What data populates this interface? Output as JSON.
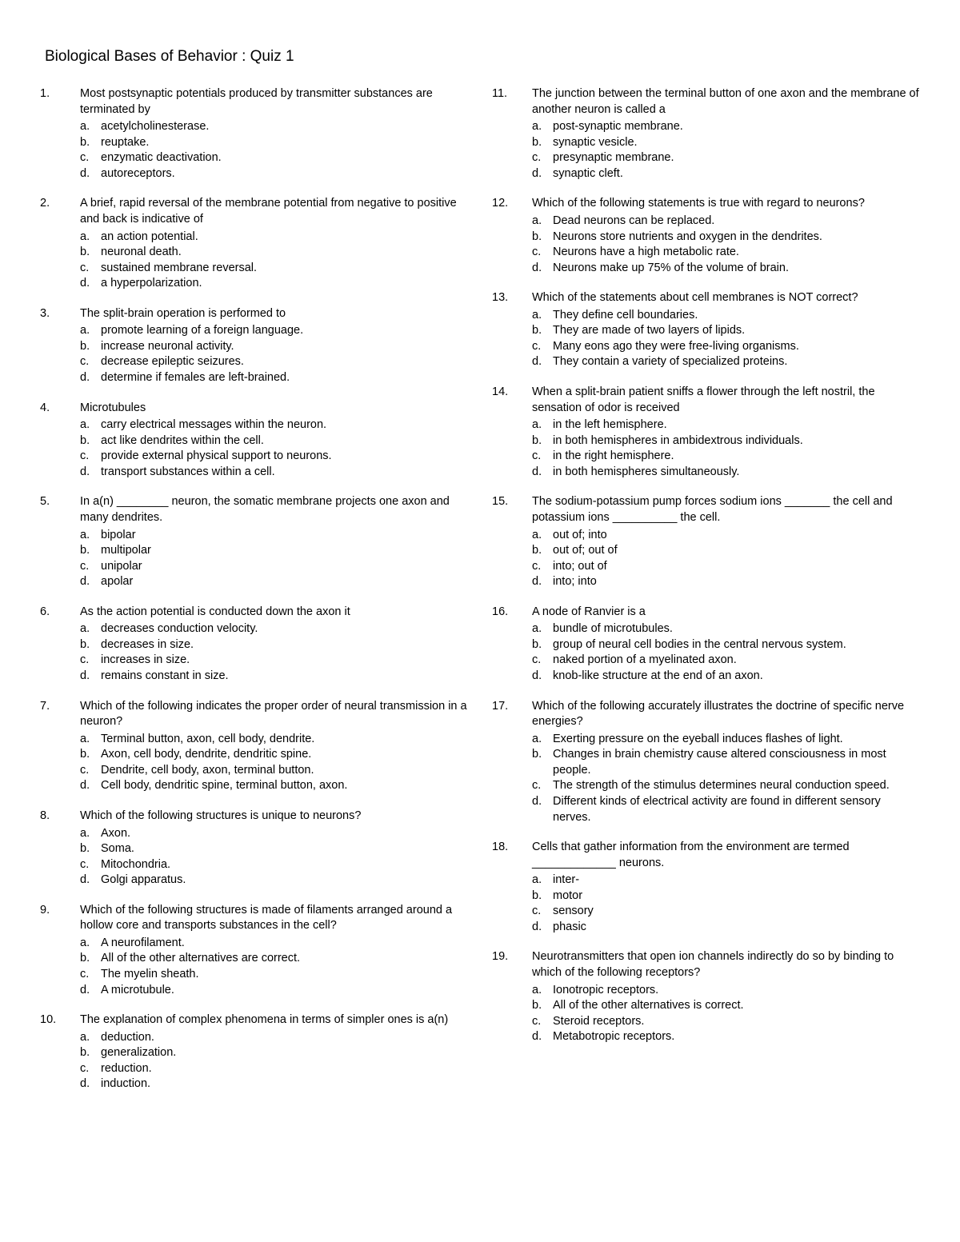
{
  "title": "Biological Bases of Behavior :  Quiz 1",
  "columns": [
    [
      {
        "num": "1.",
        "stem": "Most postsynaptic potentials produced by transmitter substances are terminated by",
        "options": [
          {
            "l": "a.",
            "t": "acetylcholinesterase."
          },
          {
            "l": "b.",
            "t": "reuptake."
          },
          {
            "l": "c.",
            "t": "enzymatic deactivation."
          },
          {
            "l": "d.",
            "t": "autoreceptors."
          }
        ]
      },
      {
        "num": "2.",
        "stem": "A brief, rapid reversal of the membrane potential from negative to positive and back is indicative of",
        "options": [
          {
            "l": "a.",
            "t": "an action potential."
          },
          {
            "l": "b.",
            "t": "neuronal death."
          },
          {
            "l": "c.",
            "t": "sustained membrane reversal."
          },
          {
            "l": "d.",
            "t": "a hyperpolarization."
          }
        ]
      },
      {
        "num": "3.",
        "stem": "The split-brain operation is performed to",
        "options": [
          {
            "l": "a.",
            "t": "promote learning of a foreign language."
          },
          {
            "l": "b.",
            "t": "increase neuronal activity."
          },
          {
            "l": "c.",
            "t": "decrease epileptic seizures."
          },
          {
            "l": "d.",
            "t": "determine if females are left-brained."
          }
        ]
      },
      {
        "num": "4.",
        "stem": "Microtubules",
        "options": [
          {
            "l": "a.",
            "t": "carry electrical messages within the neuron."
          },
          {
            "l": "b.",
            "t": "act like dendrites within the cell."
          },
          {
            "l": "c.",
            "t": "provide external physical support to neurons."
          },
          {
            "l": "d.",
            "t": "transport substances within a cell."
          }
        ]
      },
      {
        "num": "5.",
        "stem": "In a(n) ________ neuron, the somatic membrane projects one axon and many dendrites.",
        "options": [
          {
            "l": "a.",
            "t": "bipolar"
          },
          {
            "l": "b.",
            "t": "multipolar"
          },
          {
            "l": "c.",
            "t": "unipolar"
          },
          {
            "l": "d.",
            "t": "apolar"
          }
        ]
      },
      {
        "num": "6.",
        "stem": "As the action potential is conducted down the axon it",
        "options": [
          {
            "l": "a.",
            "t": "decreases conduction velocity."
          },
          {
            "l": "b.",
            "t": "decreases in size."
          },
          {
            "l": "c.",
            "t": "increases in size."
          },
          {
            "l": "d.",
            "t": "remains constant in size."
          }
        ]
      },
      {
        "num": "7.",
        "stem": "Which of the following indicates the proper order of neural transmission in a neuron?",
        "options": [
          {
            "l": "a.",
            "t": "Terminal button, axon, cell body, dendrite."
          },
          {
            "l": "b.",
            "t": "Axon, cell body, dendrite, dendritic spine."
          },
          {
            "l": "c.",
            "t": "Dendrite, cell body, axon, terminal button."
          },
          {
            "l": "d.",
            "t": "Cell body, dendritic spine, terminal button, axon."
          }
        ]
      },
      {
        "num": "8.",
        "stem": "Which of the following structures is unique to neurons?",
        "options": [
          {
            "l": "a.",
            "t": "Axon."
          },
          {
            "l": "b.",
            "t": "Soma."
          },
          {
            "l": "c.",
            "t": "Mitochondria."
          },
          {
            "l": "d.",
            "t": "Golgi apparatus."
          }
        ]
      },
      {
        "num": "9.",
        "stem": "Which of the following structures is made of filaments arranged around a hollow core and transports substances in the cell?",
        "options": [
          {
            "l": "a.",
            "t": "A neurofilament."
          },
          {
            "l": "b.",
            "t": "All of the other alternatives are correct."
          },
          {
            "l": "c.",
            "t": "The myelin sheath."
          },
          {
            "l": "d.",
            "t": "A microtubule."
          }
        ]
      },
      {
        "num": "10.",
        "stem": "The explanation of complex phenomena in terms of simpler ones is a(n)",
        "options": [
          {
            "l": "a.",
            "t": "deduction."
          },
          {
            "l": "b.",
            "t": "generalization."
          },
          {
            "l": "c.",
            "t": "reduction."
          },
          {
            "l": "d.",
            "t": "induction."
          }
        ]
      }
    ],
    [
      {
        "num": "11.",
        "stem": "The junction between the terminal button of one axon and the membrane of another neuron is called a",
        "options": [
          {
            "l": "a.",
            "t": "post-synaptic membrane."
          },
          {
            "l": "b.",
            "t": "synaptic vesicle."
          },
          {
            "l": "c.",
            "t": "presynaptic membrane."
          },
          {
            "l": "d.",
            "t": "synaptic cleft."
          }
        ]
      },
      {
        "num": "12.",
        "stem": "Which of the following statements is true with regard to neurons?",
        "options": [
          {
            "l": "a.",
            "t": "Dead neurons can be replaced."
          },
          {
            "l": "b.",
            "t": "Neurons store nutrients and oxygen in the dendrites."
          },
          {
            "l": "c.",
            "t": "Neurons have a high metabolic rate."
          },
          {
            "l": "d.",
            "t": "Neurons make up 75% of the volume of brain."
          }
        ]
      },
      {
        "num": "13.",
        "stem": "Which of the statements about cell membranes is NOT correct?",
        "options": [
          {
            "l": "a.",
            "t": "They define cell boundaries."
          },
          {
            "l": "b.",
            "t": "They are made of two layers of lipids."
          },
          {
            "l": "c.",
            "t": "Many eons ago they were free-living organisms."
          },
          {
            "l": "d.",
            "t": "They contain a variety of specialized proteins."
          }
        ]
      },
      {
        "num": "14.",
        "stem": "When a split-brain patient sniffs a flower through the left nostril, the sensation of odor is received",
        "options": [
          {
            "l": "a.",
            "t": "in the left hemisphere."
          },
          {
            "l": "b.",
            "t": "in both hemispheres in ambidextrous individuals."
          },
          {
            "l": "c.",
            "t": "in the right hemisphere."
          },
          {
            "l": "d.",
            "t": "in both hemispheres simultaneously."
          }
        ]
      },
      {
        "num": "15.",
        "stem": "The sodium-potassium pump forces sodium ions _______ the cell and potassium ions __________ the cell.",
        "options": [
          {
            "l": "a.",
            "t": "out of; into"
          },
          {
            "l": "b.",
            "t": "out of; out of"
          },
          {
            "l": "c.",
            "t": "into; out of"
          },
          {
            "l": "d.",
            "t": "into; into"
          }
        ]
      },
      {
        "num": "16.",
        "stem": "A node of Ranvier is a",
        "options": [
          {
            "l": "a.",
            "t": "bundle of microtubules."
          },
          {
            "l": "b.",
            "t": "group of neural cell bodies in the central nervous system."
          },
          {
            "l": "c.",
            "t": "naked portion of a myelinated axon."
          },
          {
            "l": "d.",
            "t": "knob-like structure at the end of an axon."
          }
        ]
      },
      {
        "num": "17.",
        "stem": "Which of the following accurately illustrates the doctrine of specific nerve energies?",
        "options": [
          {
            "l": "a.",
            "t": "Exerting pressure on the eyeball induces flashes of light."
          },
          {
            "l": "b.",
            "t": "Changes in brain chemistry cause altered consciousness in most people."
          },
          {
            "l": "c.",
            "t": "The strength of the stimulus determines neural conduction speed."
          },
          {
            "l": "d.",
            "t": "Different kinds of electrical activity are found in different sensory nerves."
          }
        ]
      },
      {
        "num": "18.",
        "stem": "Cells that gather information from the environment are termed _____________ neurons.",
        "options": [
          {
            "l": "a.",
            "t": "inter-"
          },
          {
            "l": "b.",
            "t": "motor"
          },
          {
            "l": "c.",
            "t": "sensory"
          },
          {
            "l": "d.",
            "t": "phasic"
          }
        ]
      },
      {
        "num": "19.",
        "stem": "Neurotransmitters that open ion channels indirectly do so by binding to which of the following receptors?",
        "options": [
          {
            "l": "a.",
            "t": "Ionotropic receptors."
          },
          {
            "l": "b.",
            "t": "All of the other alternatives is correct."
          },
          {
            "l": "c.",
            "t": "Steroid receptors."
          },
          {
            "l": "d.",
            "t": "Metabotropic receptors."
          }
        ]
      }
    ]
  ]
}
